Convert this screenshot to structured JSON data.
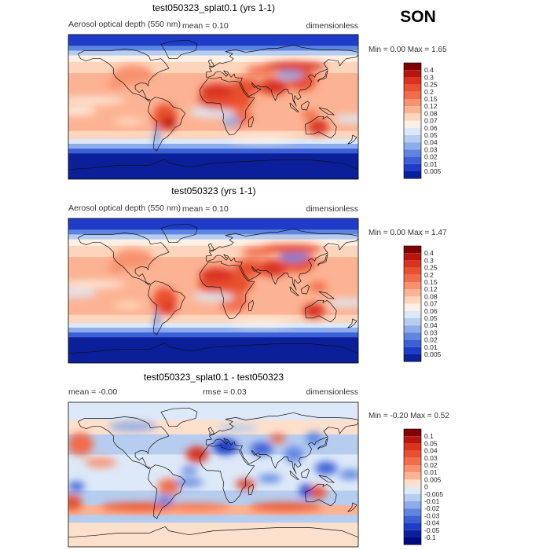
{
  "season": "SON",
  "panels": [
    {
      "title": "test050323_splat0.1 (yrs 1-1)",
      "variable": "Aerosol optical depth (550 nm)",
      "mean_text": "mean =    0.10",
      "units": "dimensionless",
      "minmax_text": "Min =    0.00 Max =    1.65",
      "kind": "aod",
      "colorbar": {
        "labels": [
          "0.4",
          "0.3",
          "0.25",
          "0.2",
          "0.15",
          "0.12",
          "0.08",
          "0.07",
          "0.06",
          "0.05",
          "0.04",
          "0.03",
          "0.02",
          "0.01",
          "0.005"
        ],
        "colors": [
          "#800000",
          "#b81410",
          "#d93320",
          "#e8502f",
          "#f26c4a",
          "#f8926e",
          "#fcb393",
          "#fdd5bd",
          "#fef0e4",
          "#dce8f8",
          "#b6cdf0",
          "#8cacea",
          "#5e86e0",
          "#3b5fd6",
          "#1e3cc8",
          "#0c1f9a"
        ]
      }
    },
    {
      "title": "test050323 (yrs 1-1)",
      "variable": "Aerosol optical depth (550 nm)",
      "mean_text": "mean =    0.10",
      "units": "dimensionless",
      "minmax_text": "Min =    0.00 Max =    1.47",
      "kind": "aod",
      "colorbar": {
        "labels": [
          "0.4",
          "0.3",
          "0.25",
          "0.2",
          "0.15",
          "0.12",
          "0.08",
          "0.07",
          "0.06",
          "0.05",
          "0.04",
          "0.03",
          "0.02",
          "0.01",
          "0.005"
        ],
        "colors": [
          "#800000",
          "#b81410",
          "#d93320",
          "#e8502f",
          "#f26c4a",
          "#f8926e",
          "#fcb393",
          "#fdd5bd",
          "#fef0e4",
          "#dce8f8",
          "#b6cdf0",
          "#8cacea",
          "#5e86e0",
          "#3b5fd6",
          "#1e3cc8",
          "#0c1f9a"
        ]
      }
    },
    {
      "title": "test050323_splat0.1 - test050323",
      "mean_text": "mean =   -0.00",
      "rmse_text": "rmse =    0.03",
      "units": "dimensionless",
      "minmax_text": "Min =   -0.20 Max =    0.52",
      "kind": "diff",
      "colorbar": {
        "labels": [
          "0.1",
          "0.05",
          "0.04",
          "0.03",
          "0.02",
          "0.01",
          "0.005",
          "0",
          "-0.005",
          "-0.01",
          "-0.02",
          "-0.03",
          "-0.04",
          "-0.05",
          "-0.1"
        ],
        "colors": [
          "#800000",
          "#b81410",
          "#d93320",
          "#e8502f",
          "#f26c4a",
          "#f8926e",
          "#fcb393",
          "#fde0cc",
          "#dde9f8",
          "#b6cdf0",
          "#8cacea",
          "#5e86e0",
          "#3b5fd6",
          "#1e3cc8",
          "#0c1f9a",
          "#000a80"
        ]
      }
    }
  ]
}
